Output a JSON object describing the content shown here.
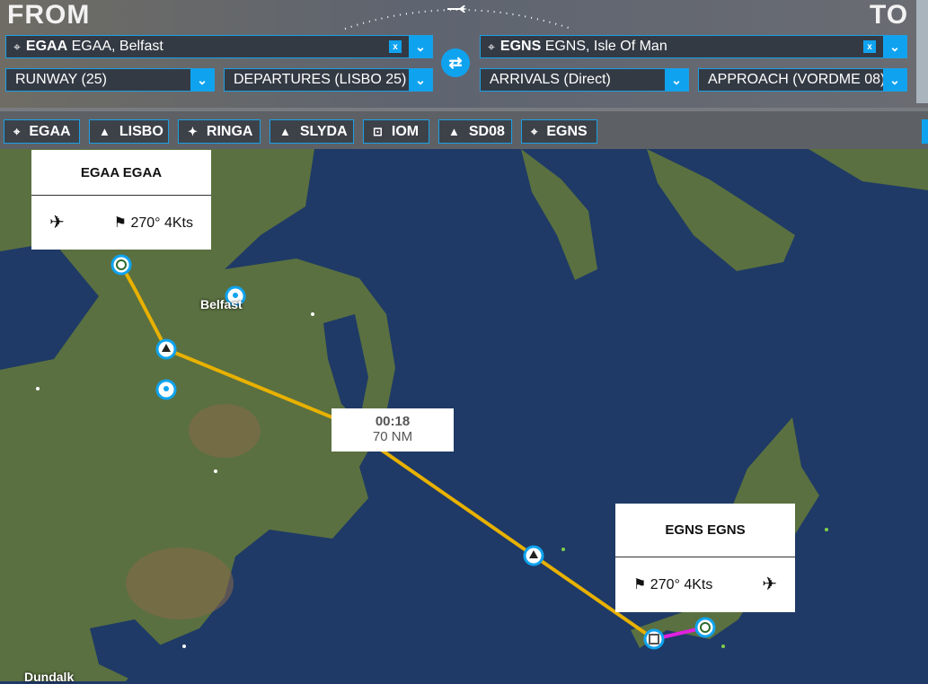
{
  "header": {
    "from_label": "FROM",
    "to_label": "TO",
    "from_airport": {
      "code": "EGAA",
      "name": "EGAA, Belfast",
      "clear": "x"
    },
    "to_airport": {
      "code": "EGNS",
      "name": "EGNS, Isle Of Man",
      "clear": "x"
    },
    "runway": "RUNWAY (25)",
    "departures": "DEPARTURES (LISBO 25)",
    "arrivals": "ARRIVALS (Direct)",
    "approach": "APPROACH (VORDME 08)",
    "swap_icon": "swap-arrows-icon"
  },
  "waypoints": [
    {
      "label": "EGAA",
      "icon": "airport-icon",
      "glyph": "⌖"
    },
    {
      "label": "LISBO",
      "icon": "triangle-waypoint-icon",
      "glyph": "▲"
    },
    {
      "label": "RINGA",
      "icon": "star-waypoint-icon",
      "glyph": "✦"
    },
    {
      "label": "SLYDA",
      "icon": "triangle-waypoint-icon",
      "glyph": "▲"
    },
    {
      "label": "IOM",
      "icon": "vor-icon",
      "glyph": "⊡"
    },
    {
      "label": "SD08",
      "icon": "triangle-waypoint-icon",
      "glyph": "▲"
    },
    {
      "label": "EGNS",
      "icon": "airport-icon",
      "glyph": "⌖"
    }
  ],
  "map": {
    "departure_card": {
      "title": "EGAA EGAA",
      "wind": "270° 4Kts"
    },
    "arrival_card": {
      "title": "EGNS EGNS",
      "wind": "270° 4Kts"
    },
    "leg_info": {
      "time": "00:18",
      "distance": "70 NM"
    },
    "cities": [
      "Belfast",
      "Dundalk"
    ],
    "colors": {
      "route": "#e8b100",
      "approach": "#e020e0",
      "accent": "#0fa3ef",
      "sea": "#1f3a66"
    }
  }
}
